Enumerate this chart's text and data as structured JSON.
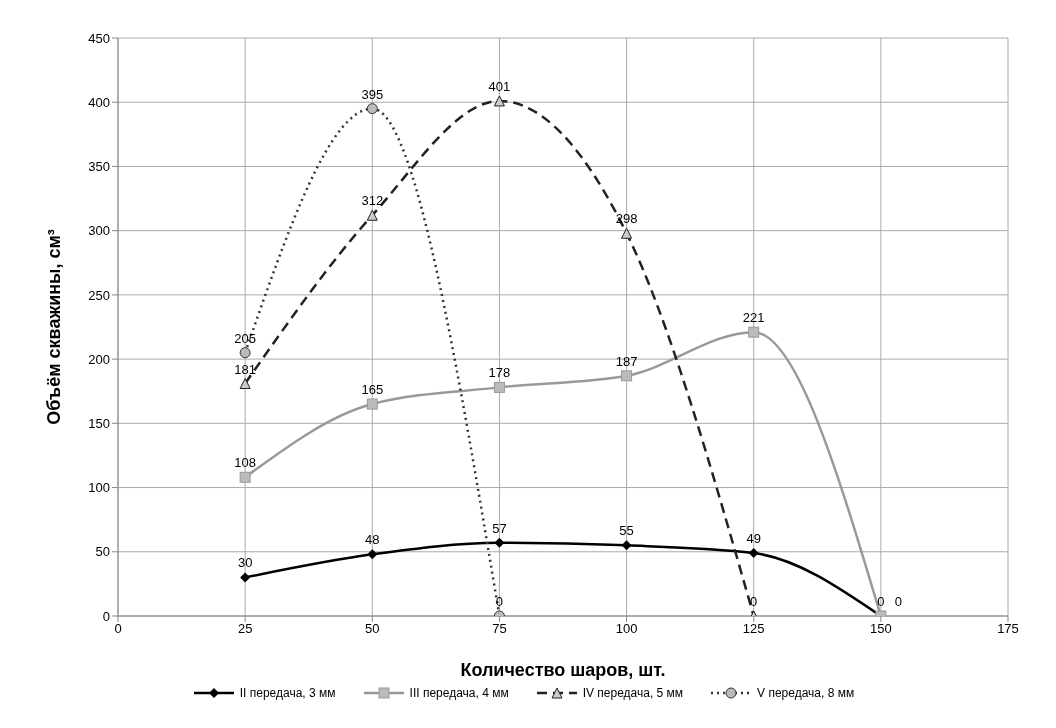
{
  "chart_data": {
    "type": "line",
    "xlabel": "Количество шаров, шт.",
    "ylabel": "Объём скважины, см³",
    "xlim": [
      0,
      175
    ],
    "xticks": [
      0,
      25,
      50,
      75,
      100,
      125,
      150,
      175
    ],
    "ylim": [
      0,
      450
    ],
    "yticks": [
      0,
      50,
      100,
      150,
      200,
      250,
      300,
      350,
      400,
      450
    ],
    "grid": true,
    "legend": "bottom",
    "data_labels": true,
    "series": [
      {
        "name": "II передача, 3 мм",
        "color": "#000000",
        "marker": "diamond",
        "line_style": "solid",
        "x": [
          25,
          50,
          75,
          100,
          125,
          150
        ],
        "values": [
          30,
          48,
          57,
          55,
          49,
          0
        ]
      },
      {
        "name": "III передача, 4 мм",
        "color": "#999999",
        "marker": "square",
        "line_style": "solid",
        "x": [
          25,
          50,
          75,
          100,
          125,
          150
        ],
        "values": [
          108,
          165,
          178,
          187,
          221,
          0
        ]
      },
      {
        "name": "IV передача, 5 мм",
        "color": "#222222",
        "marker": "triangle",
        "line_style": "dashed",
        "x": [
          25,
          50,
          75,
          100,
          125
        ],
        "values": [
          181,
          312,
          401,
          298,
          0
        ]
      },
      {
        "name": "V передача, 8 мм",
        "color": "#333333",
        "marker": "circle",
        "line_style": "dotted",
        "x": [
          25,
          50,
          75
        ],
        "values": [
          205,
          395,
          0
        ]
      }
    ]
  }
}
